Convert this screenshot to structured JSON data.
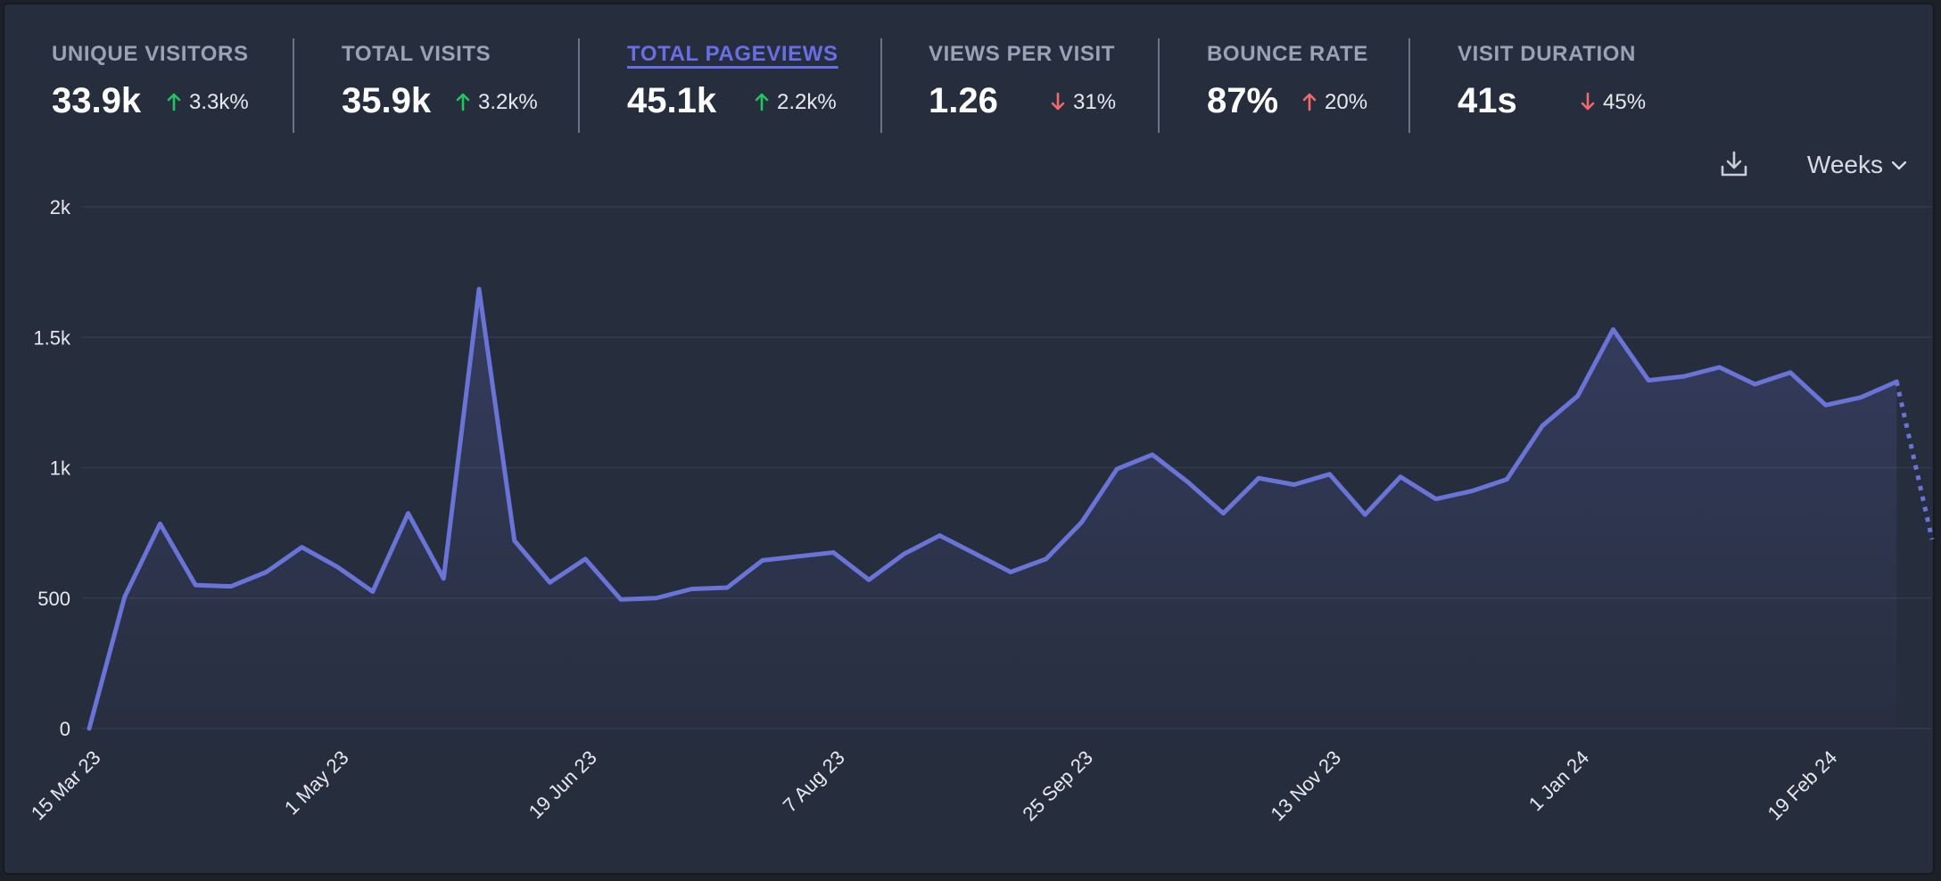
{
  "stats": [
    {
      "label": "UNIQUE VISITORS",
      "value": "33.9k",
      "change": "3.3k%",
      "direction": "up",
      "active": false
    },
    {
      "label": "TOTAL VISITS",
      "value": "35.9k",
      "change": "3.2k%",
      "direction": "up",
      "active": false
    },
    {
      "label": "TOTAL PAGEVIEWS",
      "value": "45.1k",
      "change": "2.2k%",
      "direction": "up",
      "active": true
    },
    {
      "label": "VIEWS PER VISIT",
      "value": "1.26",
      "change": "31%",
      "direction": "down",
      "active": false
    },
    {
      "label": "BOUNCE RATE",
      "value": "87%",
      "change": "20%",
      "direction": "up",
      "active": false
    },
    {
      "label": "VISIT DURATION",
      "value": "41s",
      "change": "45%",
      "direction": "down",
      "active": false
    }
  ],
  "controls": {
    "download_icon": "download-icon",
    "interval_label": "Weeks",
    "interval_icon": "chevron-down-icon"
  },
  "colors": {
    "line": "#6a74d6",
    "up": "#22c55e",
    "up_bad": "#f16a6a",
    "down": "#f16a6a",
    "active_label": "#6a6ee6"
  },
  "chart_data": {
    "type": "line",
    "ylim": [
      0,
      2000
    ],
    "yticks": [
      0,
      500,
      1000,
      1500,
      2000
    ],
    "ytick_labels": [
      "0",
      "500",
      "1k",
      "1.5k",
      "2k"
    ],
    "xtick_labels": [
      "15 Mar 23",
      "1 May 23",
      "19 Jun 23",
      "7 Aug 23",
      "25 Sep 23",
      "13 Nov 23",
      "1 Jan 24",
      "19 Feb 24"
    ],
    "xtick_positions": [
      0,
      7,
      14,
      21,
      28,
      35,
      42,
      49
    ],
    "grid": true,
    "incomplete_last_point": true,
    "series": [
      {
        "values": [
          0,
          505,
          785,
          550,
          545,
          600,
          695,
          620,
          525,
          825,
          575,
          1685,
          720,
          560,
          650,
          495,
          500,
          535,
          540,
          645,
          660,
          675,
          570,
          670,
          740,
          670,
          600,
          650,
          790,
          995,
          1050,
          945,
          825,
          960,
          935,
          975,
          820,
          965,
          880,
          910,
          955,
          1160,
          1275,
          1530,
          1335,
          1350,
          1385,
          1320,
          1365,
          1240,
          1270,
          1330,
          725
        ]
      }
    ]
  }
}
